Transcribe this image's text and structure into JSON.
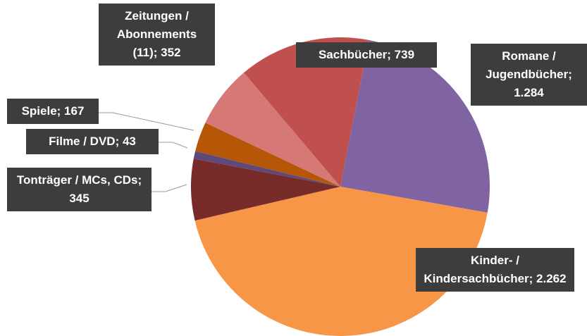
{
  "chart_data": {
    "type": "pie",
    "value_labels": [
      "Romane / Jugendbücher; 1.284",
      "Kinder- / Kindersachbücher; 2.262",
      "Tonträger / MCs, CDs; 345",
      "Filme / DVD; 43",
      "Spiele; 167",
      "Zeitungen / Abonnements (11); 352",
      "Sachbücher; 739"
    ],
    "values": [
      1284,
      2262,
      345,
      43,
      167,
      352,
      739
    ],
    "colors": [
      "#8064a2",
      "#f79646",
      "#772c2a",
      "#5f497a",
      "#b65708",
      "#d67876",
      "#c0504d"
    ]
  }
}
